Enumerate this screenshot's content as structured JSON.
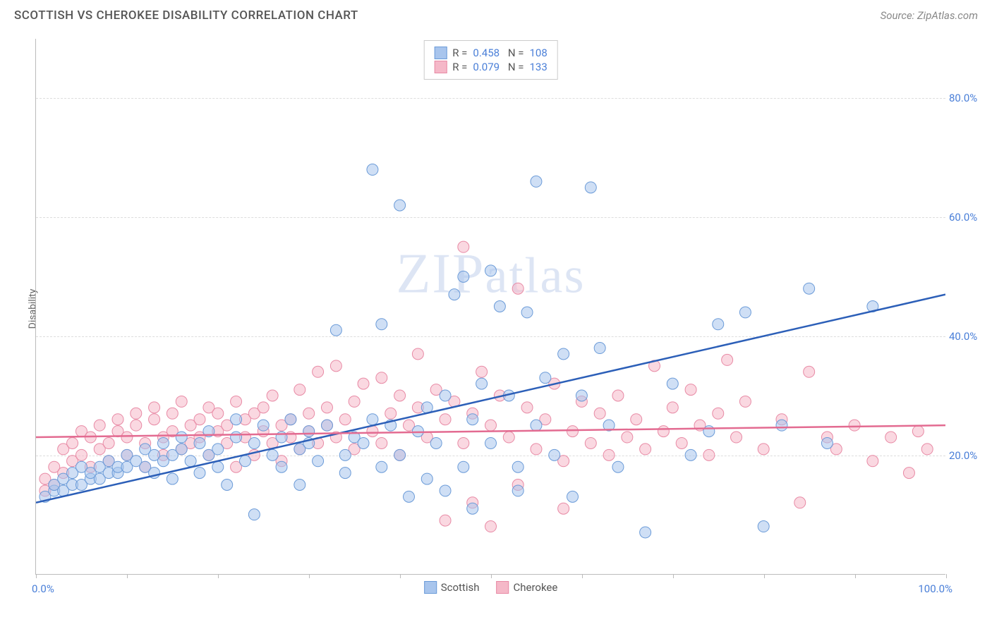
{
  "title": "SCOTTISH VS CHEROKEE DISABILITY CORRELATION CHART",
  "source": "Source: ZipAtlas.com",
  "ylabel": "Disability",
  "watermark": "ZIPatlas",
  "chart": {
    "type": "scatter",
    "xlim": [
      0,
      100
    ],
    "ylim": [
      0,
      90
    ],
    "xtick_label_left": "0.0%",
    "xtick_label_right": "100.0%",
    "ytick_labels": [
      "20.0%",
      "40.0%",
      "60.0%",
      "80.0%"
    ],
    "ytick_values": [
      20,
      40,
      60,
      80
    ],
    "xtick_positions": [
      0,
      10,
      20,
      30,
      40,
      50,
      60,
      70,
      80,
      90,
      100
    ],
    "grid_color": "#dddddd",
    "axis_color": "#bbbbbb",
    "background_color": "#ffffff",
    "marker_radius": 8,
    "marker_opacity": 0.55,
    "line_width": 2.5,
    "series": [
      {
        "name": "Scottish",
        "color_fill": "#a8c5ed",
        "color_stroke": "#6b9bd8",
        "line_color": "#2c5fb8",
        "R": "0.458",
        "N": "108",
        "trend": {
          "x1": 0,
          "y1": 12,
          "x2": 100,
          "y2": 47
        },
        "points": [
          [
            1,
            13
          ],
          [
            2,
            14
          ],
          [
            2,
            15
          ],
          [
            3,
            14
          ],
          [
            3,
            16
          ],
          [
            4,
            15
          ],
          [
            4,
            17
          ],
          [
            5,
            15
          ],
          [
            5,
            18
          ],
          [
            6,
            16
          ],
          [
            6,
            17
          ],
          [
            7,
            16
          ],
          [
            7,
            18
          ],
          [
            8,
            17
          ],
          [
            8,
            19
          ],
          [
            9,
            17
          ],
          [
            9,
            18
          ],
          [
            10,
            18
          ],
          [
            10,
            20
          ],
          [
            11,
            19
          ],
          [
            12,
            18
          ],
          [
            12,
            21
          ],
          [
            13,
            20
          ],
          [
            13,
            17
          ],
          [
            14,
            19
          ],
          [
            14,
            22
          ],
          [
            15,
            20
          ],
          [
            15,
            16
          ],
          [
            16,
            21
          ],
          [
            16,
            23
          ],
          [
            17,
            19
          ],
          [
            18,
            22
          ],
          [
            18,
            17
          ],
          [
            19,
            24
          ],
          [
            19,
            20
          ],
          [
            20,
            21
          ],
          [
            20,
            18
          ],
          [
            21,
            15
          ],
          [
            22,
            23
          ],
          [
            22,
            26
          ],
          [
            23,
            19
          ],
          [
            24,
            22
          ],
          [
            24,
            10
          ],
          [
            25,
            25
          ],
          [
            26,
            20
          ],
          [
            27,
            23
          ],
          [
            27,
            18
          ],
          [
            28,
            26
          ],
          [
            29,
            21
          ],
          [
            29,
            15
          ],
          [
            30,
            24
          ],
          [
            30,
            22
          ],
          [
            31,
            19
          ],
          [
            32,
            25
          ],
          [
            33,
            41
          ],
          [
            34,
            20
          ],
          [
            34,
            17
          ],
          [
            35,
            23
          ],
          [
            36,
            22
          ],
          [
            37,
            68
          ],
          [
            37,
            26
          ],
          [
            38,
            18
          ],
          [
            38,
            42
          ],
          [
            39,
            25
          ],
          [
            40,
            62
          ],
          [
            40,
            20
          ],
          [
            41,
            13
          ],
          [
            42,
            24
          ],
          [
            43,
            28
          ],
          [
            43,
            16
          ],
          [
            44,
            22
          ],
          [
            45,
            30
          ],
          [
            45,
            14
          ],
          [
            46,
            47
          ],
          [
            47,
            50
          ],
          [
            47,
            18
          ],
          [
            48,
            26
          ],
          [
            48,
            11
          ],
          [
            49,
            32
          ],
          [
            50,
            51
          ],
          [
            50,
            22
          ],
          [
            51,
            45
          ],
          [
            52,
            30
          ],
          [
            53,
            18
          ],
          [
            53,
            14
          ],
          [
            54,
            44
          ],
          [
            55,
            66
          ],
          [
            55,
            25
          ],
          [
            56,
            33
          ],
          [
            57,
            20
          ],
          [
            58,
            37
          ],
          [
            59,
            13
          ],
          [
            60,
            30
          ],
          [
            61,
            65
          ],
          [
            62,
            38
          ],
          [
            63,
            25
          ],
          [
            64,
            18
          ],
          [
            67,
            7
          ],
          [
            70,
            32
          ],
          [
            72,
            20
          ],
          [
            74,
            24
          ],
          [
            75,
            42
          ],
          [
            78,
            44
          ],
          [
            80,
            8
          ],
          [
            82,
            25
          ],
          [
            85,
            48
          ],
          [
            87,
            22
          ],
          [
            92,
            45
          ]
        ]
      },
      {
        "name": "Cherokee",
        "color_fill": "#f5b8c8",
        "color_stroke": "#e88aa5",
        "line_color": "#e36b91",
        "R": "0.079",
        "N": "133",
        "trend": {
          "x1": 0,
          "y1": 23,
          "x2": 100,
          "y2": 25
        },
        "points": [
          [
            1,
            14
          ],
          [
            1,
            16
          ],
          [
            2,
            15
          ],
          [
            2,
            18
          ],
          [
            3,
            17
          ],
          [
            3,
            21
          ],
          [
            4,
            19
          ],
          [
            4,
            22
          ],
          [
            5,
            20
          ],
          [
            5,
            24
          ],
          [
            6,
            18
          ],
          [
            6,
            23
          ],
          [
            7,
            21
          ],
          [
            7,
            25
          ],
          [
            8,
            19
          ],
          [
            8,
            22
          ],
          [
            9,
            24
          ],
          [
            9,
            26
          ],
          [
            10,
            20
          ],
          [
            10,
            23
          ],
          [
            11,
            25
          ],
          [
            11,
            27
          ],
          [
            12,
            22
          ],
          [
            12,
            18
          ],
          [
            13,
            26
          ],
          [
            13,
            28
          ],
          [
            14,
            23
          ],
          [
            14,
            20
          ],
          [
            15,
            27
          ],
          [
            15,
            24
          ],
          [
            16,
            21
          ],
          [
            16,
            29
          ],
          [
            17,
            25
          ],
          [
            17,
            22
          ],
          [
            18,
            26
          ],
          [
            18,
            23
          ],
          [
            19,
            28
          ],
          [
            19,
            20
          ],
          [
            20,
            24
          ],
          [
            20,
            27
          ],
          [
            21,
            25
          ],
          [
            21,
            22
          ],
          [
            22,
            29
          ],
          [
            22,
            18
          ],
          [
            23,
            26
          ],
          [
            23,
            23
          ],
          [
            24,
            27
          ],
          [
            24,
            20
          ],
          [
            25,
            28
          ],
          [
            25,
            24
          ],
          [
            26,
            22
          ],
          [
            26,
            30
          ],
          [
            27,
            25
          ],
          [
            27,
            19
          ],
          [
            28,
            26
          ],
          [
            28,
            23
          ],
          [
            29,
            31
          ],
          [
            29,
            21
          ],
          [
            30,
            27
          ],
          [
            30,
            24
          ],
          [
            31,
            34
          ],
          [
            31,
            22
          ],
          [
            32,
            28
          ],
          [
            32,
            25
          ],
          [
            33,
            35
          ],
          [
            33,
            23
          ],
          [
            34,
            26
          ],
          [
            35,
            29
          ],
          [
            35,
            21
          ],
          [
            36,
            32
          ],
          [
            37,
            24
          ],
          [
            38,
            33
          ],
          [
            38,
            22
          ],
          [
            39,
            27
          ],
          [
            40,
            30
          ],
          [
            40,
            20
          ],
          [
            41,
            25
          ],
          [
            42,
            28
          ],
          [
            42,
            37
          ],
          [
            43,
            23
          ],
          [
            44,
            31
          ],
          [
            45,
            26
          ],
          [
            45,
            9
          ],
          [
            46,
            29
          ],
          [
            47,
            55
          ],
          [
            47,
            22
          ],
          [
            48,
            27
          ],
          [
            48,
            12
          ],
          [
            49,
            34
          ],
          [
            50,
            25
          ],
          [
            50,
            8
          ],
          [
            51,
            30
          ],
          [
            52,
            23
          ],
          [
            53,
            48
          ],
          [
            53,
            15
          ],
          [
            54,
            28
          ],
          [
            55,
            21
          ],
          [
            56,
            26
          ],
          [
            57,
            32
          ],
          [
            58,
            19
          ],
          [
            58,
            11
          ],
          [
            59,
            24
          ],
          [
            60,
            29
          ],
          [
            61,
            22
          ],
          [
            62,
            27
          ],
          [
            63,
            20
          ],
          [
            64,
            30
          ],
          [
            65,
            23
          ],
          [
            66,
            26
          ],
          [
            67,
            21
          ],
          [
            68,
            35
          ],
          [
            69,
            24
          ],
          [
            70,
            28
          ],
          [
            71,
            22
          ],
          [
            72,
            31
          ],
          [
            73,
            25
          ],
          [
            74,
            20
          ],
          [
            75,
            27
          ],
          [
            76,
            36
          ],
          [
            77,
            23
          ],
          [
            78,
            29
          ],
          [
            80,
            21
          ],
          [
            82,
            26
          ],
          [
            84,
            12
          ],
          [
            85,
            34
          ],
          [
            87,
            23
          ],
          [
            88,
            21
          ],
          [
            90,
            25
          ],
          [
            92,
            19
          ],
          [
            94,
            23
          ],
          [
            96,
            17
          ],
          [
            97,
            24
          ],
          [
            98,
            21
          ]
        ]
      }
    ]
  },
  "legend_bottom": [
    {
      "label": "Scottish"
    },
    {
      "label": "Cherokee"
    }
  ]
}
